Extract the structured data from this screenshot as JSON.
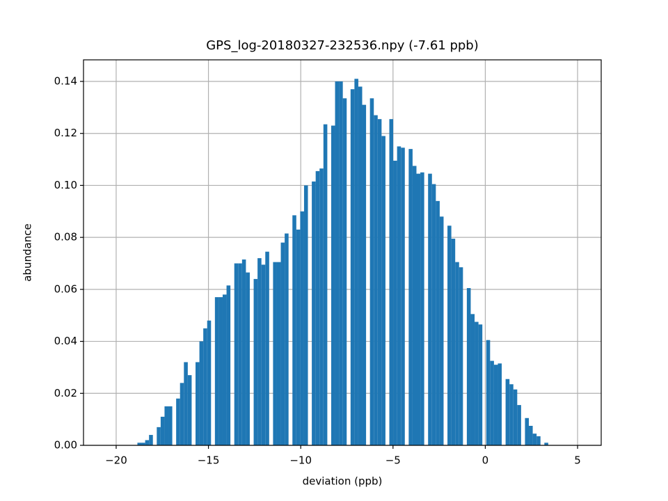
{
  "chart_data": {
    "type": "histogram",
    "title": "GPS_log-20180327-232536.npy (-7.61 ppb)",
    "x_label": "deviation (ppb)",
    "y_label": "abundance",
    "color": "#1f77b4",
    "grid": true,
    "xlim": [
      -21.77,
      6.28
    ],
    "ylim": [
      0,
      0.1483
    ],
    "xticks": [
      {
        "value": -20,
        "label": "−20"
      },
      {
        "value": -15,
        "label": "−15"
      },
      {
        "value": -10,
        "label": "−10"
      },
      {
        "value": -5,
        "label": "−5"
      },
      0,
      5
    ],
    "yticks": [
      {
        "value": 0,
        "label": "0.00"
      },
      0.02,
      0.04,
      0.06,
      0.08,
      {
        "value": 0.1,
        "label": "0.10"
      },
      0.12,
      0.14
    ],
    "bins": [
      -18.85,
      -18.64,
      -18.43,
      -18.22,
      -18.01,
      -17.8,
      -17.59,
      -17.38,
      -17.17,
      -16.96,
      -16.75,
      -16.54,
      -16.33,
      -16.12,
      -15.91,
      -15.7,
      -15.49,
      -15.28,
      -15.07,
      -14.86,
      -14.65,
      -14.44,
      -14.23,
      -14.02,
      -13.81,
      -13.6,
      -13.39,
      -13.18,
      -12.97,
      -12.76,
      -12.55,
      -12.34,
      -12.13,
      -11.92,
      -11.71,
      -11.5,
      -11.29,
      -11.08,
      -10.87,
      -10.66,
      -10.45,
      -10.24,
      -10.03,
      -9.82,
      -9.61,
      -9.4,
      -9.19,
      -8.98,
      -8.77,
      -8.56,
      -8.35,
      -8.14,
      -7.93,
      -7.72,
      -7.51,
      -7.3,
      -7.09,
      -6.88,
      -6.67,
      -6.46,
      -6.25,
      -6.04,
      -5.83,
      -5.62,
      -5.41,
      -5.2,
      -4.99,
      -4.78,
      -4.57,
      -4.36,
      -4.15,
      -3.94,
      -3.73,
      -3.52,
      -3.31,
      -3.1,
      -2.89,
      -2.68,
      -2.47,
      -2.26,
      -2.05,
      -1.84,
      -1.63,
      -1.42,
      -1.21,
      -1.0,
      -0.79,
      -0.58,
      -0.37,
      -0.16,
      0.05,
      0.26,
      0.47,
      0.68,
      0.89,
      1.1,
      1.31,
      1.52,
      1.73,
      1.94,
      2.15,
      2.36,
      2.57,
      2.78,
      2.99,
      3.2,
      3.41
    ],
    "values": [
      0.001,
      0.001,
      0.002,
      0.004,
      0,
      0.007,
      0.011,
      0.015,
      0.015,
      0,
      0.018,
      0.024,
      0.032,
      0.027,
      0,
      0.032,
      0.04,
      0.045,
      0.048,
      0,
      0.057,
      0.057,
      0.058,
      0.0615,
      0,
      0.07,
      0.07,
      0.0715,
      0.0665,
      0,
      0.064,
      0.072,
      0.0695,
      0.0745,
      0,
      0.0705,
      0.0705,
      0.078,
      0.0815,
      0,
      0.0885,
      0.083,
      0.09,
      0.1,
      0,
      0.1015,
      0.1055,
      0.1065,
      0.1235,
      0,
      0.123,
      0.14,
      0.14,
      0.1335,
      0,
      0.137,
      0.141,
      0.138,
      0.131,
      0,
      0.1335,
      0.127,
      0.1255,
      0.119,
      0,
      0.1255,
      0.1095,
      0.115,
      0.1145,
      0,
      0.114,
      0.1075,
      0.1045,
      0.105,
      0,
      0.1045,
      0.1005,
      0.094,
      0.088,
      0,
      0.0845,
      0.0795,
      0.0705,
      0.0685,
      0,
      0.0605,
      0.0505,
      0.0475,
      0.0465,
      0,
      0.0405,
      0.0325,
      0.031,
      0.0315,
      0,
      0.0255,
      0.0235,
      0.0215,
      0.0155,
      0,
      0.0105,
      0.0075,
      0.0045,
      0.0035,
      0,
      0.001
    ]
  }
}
